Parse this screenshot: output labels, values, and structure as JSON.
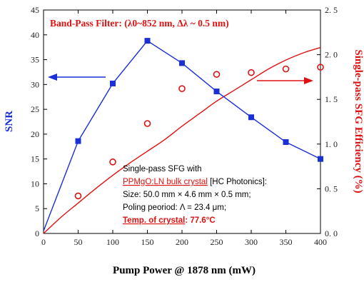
{
  "chart_data": {
    "type": "line",
    "title": "Band-Pass Filter:  (λ0~852 nm, Δλ ~ 0.5 nm)",
    "xlabel": "Pump Power @ 1878 nm (mW)",
    "ylabel_left": "SNR",
    "ylabel_right": "Single-pass  SFG  Efficiency (%)",
    "xlim": [
      0,
      400
    ],
    "ylim_left": [
      0,
      45
    ],
    "ylim_right": [
      0,
      2.5
    ],
    "x_ticks": [
      "0",
      "50",
      "100",
      "150",
      "200",
      "250",
      "300",
      "350",
      "400"
    ],
    "y_left_ticks": [
      "0",
      "5",
      "10",
      "15",
      "20",
      "25",
      "30",
      "35",
      "40",
      "45"
    ],
    "y_right_ticks": [
      "0. 0",
      "0. 5",
      "1. 0",
      "1. 5",
      "2. 0",
      "2. 5"
    ],
    "series": [
      {
        "axis": "left",
        "marker": "square",
        "color": "#1a2fd6",
        "x": [
          0,
          50,
          100,
          150,
          200,
          250,
          300,
          350,
          400
        ],
        "y": [
          0.5,
          18.6,
          30.2,
          38.8,
          34.3,
          28.6,
          23.4,
          18.4,
          15.0
        ]
      },
      {
        "axis": "right",
        "marker": "open-circle",
        "color": "#e01010",
        "x": [
          50,
          100,
          150,
          200,
          250,
          300,
          350,
          400
        ],
        "y": [
          0.42,
          0.8,
          1.23,
          1.62,
          1.78,
          1.8,
          1.84,
          1.86
        ]
      },
      {
        "axis": "right",
        "marker": "none",
        "role": "fit-curve",
        "color": "#e01010",
        "x": [
          0,
          25,
          50,
          75,
          100,
          125,
          150,
          175,
          200,
          225,
          250,
          275,
          300,
          325,
          350,
          375,
          400
        ],
        "y": [
          0.0,
          0.18,
          0.34,
          0.5,
          0.65,
          0.79,
          0.92,
          1.05,
          1.2,
          1.34,
          1.48,
          1.6,
          1.72,
          1.84,
          1.94,
          2.02,
          2.08
        ]
      }
    ],
    "arrows": [
      {
        "direction": "left",
        "axis": "left",
        "color": "#1a2fd6"
      },
      {
        "direction": "right",
        "axis": "right",
        "color": "#e01010"
      }
    ],
    "annotation": {
      "line1": "Single-pass SFG with",
      "line2_red": "PPMgO:LN bulk crystal",
      "line2_rest": " [HC Photonics]:",
      "line3": "Size: 50.0 mm × 4.6 mm × 0.5 mm;",
      "line4": "Poling peoriod:  Λ = 23.4  μm;",
      "line5_red": "Temp. of crystal",
      "line5_rest": ": 77.6°C"
    },
    "grid": false,
    "legend": "none"
  }
}
